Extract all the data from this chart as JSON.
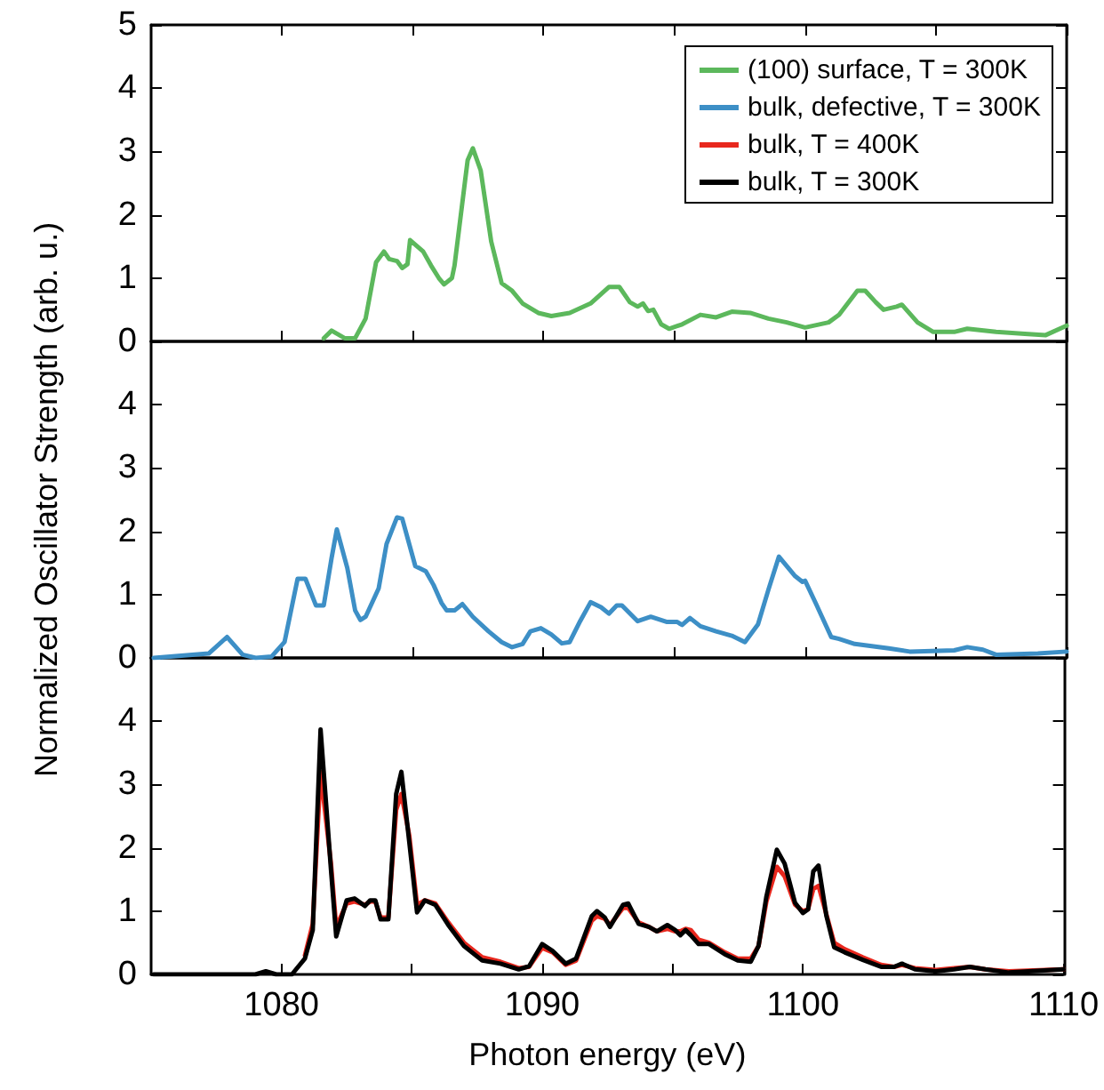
{
  "chart_data": [
    {
      "type": "line",
      "xlim": [
        1075,
        1110
      ],
      "xticks": [
        1080,
        {
          "value": 1085,
          "label": null
        },
        1090,
        {
          "value": 1095,
          "label": null
        },
        1100,
        {
          "value": 1105,
          "label": null
        },
        1110
      ],
      "ylim": [
        0,
        5
      ],
      "yticks": [
        0,
        1,
        2,
        3,
        4,
        5
      ],
      "tick_labels": "y",
      "legend": "top right",
      "grid": false,
      "series": [
        {
          "name": "(100) surface, T = 300K",
          "color": "#5cb85c",
          "x": [
            1081.6,
            1081.9,
            1082.4,
            1082.8,
            1083.2,
            1083.6,
            1083.9,
            1084.1,
            1084.4,
            1084.6,
            1084.8,
            1084.9,
            1085.4,
            1085.7,
            1086.0,
            1086.2,
            1086.5,
            1086.6,
            1087.0,
            1087.1,
            1087.3,
            1087.6,
            1088.0,
            1088.4,
            1088.8,
            1089.2,
            1089.8,
            1090.3,
            1091.0,
            1091.8,
            1092.5,
            1092.9,
            1093.3,
            1093.6,
            1093.8,
            1094.0,
            1094.2,
            1094.5,
            1094.8,
            1095.3,
            1096.0,
            1096.6,
            1097.2,
            1097.9,
            1098.6,
            1099.3,
            1100.0,
            1100.9,
            1101.3,
            1102.0,
            1102.3,
            1102.7,
            1103.0,
            1103.5,
            1103.7,
            1104.3,
            1104.9,
            1105.7,
            1106.2,
            1107.3,
            1108.4,
            1109.2,
            1110.0
          ],
          "values": [
            0.05,
            0.17,
            0.05,
            0.05,
            0.36,
            1.25,
            1.42,
            1.3,
            1.27,
            1.16,
            1.22,
            1.6,
            1.42,
            1.2,
            1.0,
            0.9,
            1.0,
            1.2,
            2.53,
            2.86,
            3.05,
            2.7,
            1.58,
            0.92,
            0.8,
            0.6,
            0.45,
            0.4,
            0.45,
            0.6,
            0.86,
            0.86,
            0.62,
            0.55,
            0.6,
            0.48,
            0.5,
            0.27,
            0.2,
            0.27,
            0.42,
            0.38,
            0.47,
            0.45,
            0.36,
            0.3,
            0.22,
            0.3,
            0.42,
            0.8,
            0.8,
            0.62,
            0.5,
            0.55,
            0.58,
            0.3,
            0.15,
            0.15,
            0.2,
            0.15,
            0.12,
            0.1,
            0.25
          ]
        }
      ]
    },
    {
      "type": "line",
      "xlim": [
        1075,
        1110
      ],
      "xticks": [
        1080,
        {
          "value": 1085,
          "label": null
        },
        1090,
        {
          "value": 1095,
          "label": null
        },
        1100,
        {
          "value": 1105,
          "label": null
        },
        1110
      ],
      "ylim": [
        0,
        5
      ],
      "yticks": [
        0,
        1,
        2,
        3,
        4
      ],
      "tick_labels": "y",
      "grid": false,
      "legend": "top right",
      "ylabel": "Normalized Oscillator Strength (arb. u.)",
      "series": [
        {
          "name": "bulk, defective, T = 300K",
          "color": "#3d8fc6",
          "x": [
            1075.1,
            1077.2,
            1077.9,
            1078.5,
            1079.0,
            1079.6,
            1080.1,
            1080.6,
            1080.9,
            1081.3,
            1081.6,
            1081.9,
            1082.1,
            1082.5,
            1082.8,
            1083.0,
            1083.2,
            1083.7,
            1084.0,
            1084.4,
            1084.6,
            1085.1,
            1085.5,
            1085.8,
            1086.1,
            1086.3,
            1086.6,
            1086.9,
            1087.3,
            1087.9,
            1088.4,
            1088.8,
            1089.2,
            1089.5,
            1089.9,
            1090.3,
            1090.7,
            1091.0,
            1091.4,
            1091.8,
            1092.2,
            1092.5,
            1092.8,
            1093.0,
            1093.6,
            1094.1,
            1094.7,
            1095.1,
            1095.3,
            1095.6,
            1096.0,
            1096.6,
            1097.2,
            1097.7,
            1098.2,
            1098.6,
            1099.0,
            1099.6,
            1099.9,
            1100.0,
            1100.4,
            1101.0,
            1101.3,
            1101.9,
            1103.2,
            1104.0,
            1105.7,
            1106.2,
            1106.8,
            1107.3,
            1108.9,
            1110.0
          ],
          "values": [
            0,
            0.07,
            0.33,
            0.05,
            0,
            0.02,
            0.25,
            1.25,
            1.25,
            0.83,
            0.83,
            1.58,
            2.03,
            1.42,
            0.75,
            0.6,
            0.65,
            1.1,
            1.8,
            2.22,
            2.2,
            1.45,
            1.37,
            1.15,
            0.87,
            0.75,
            0.75,
            0.85,
            0.65,
            0.42,
            0.25,
            0.17,
            0.22,
            0.42,
            0.47,
            0.37,
            0.23,
            0.25,
            0.58,
            0.88,
            0.8,
            0.7,
            0.83,
            0.83,
            0.58,
            0.65,
            0.57,
            0.57,
            0.52,
            0.63,
            0.5,
            0.42,
            0.35,
            0.25,
            0.53,
            1.08,
            1.6,
            1.3,
            1.2,
            1.22,
            0.87,
            0.33,
            0.3,
            0.22,
            0.15,
            0.1,
            0.12,
            0.17,
            0.13,
            0.05,
            0.07,
            0.1
          ]
        }
      ]
    },
    {
      "type": "line",
      "xlim": [
        1075,
        1110
      ],
      "xticks": [
        1080,
        {
          "value": 1085,
          "label": null
        },
        1090,
        {
          "value": 1095,
          "label": null
        },
        1100,
        {
          "value": 1105,
          "label": null
        },
        1110
      ],
      "ylim": [
        0,
        5
      ],
      "yticks": [
        0,
        1,
        2,
        3,
        4
      ],
      "grid": false,
      "legend": "top right",
      "xlabel": "Photon energy (eV)",
      "series": [
        {
          "name": "bulk, T = 400K",
          "color": "#e8281e",
          "x": [
            1080.9,
            1081.2,
            1081.5,
            1081.9,
            1082.1,
            1082.5,
            1082.8,
            1083.2,
            1083.4,
            1083.6,
            1083.8,
            1084.1,
            1084.4,
            1084.6,
            1084.9,
            1085.2,
            1085.5,
            1085.9,
            1086.4,
            1087.0,
            1087.7,
            1088.4,
            1089.1,
            1089.5,
            1090.0,
            1090.4,
            1090.9,
            1091.3,
            1091.9,
            1092.1,
            1092.4,
            1092.6,
            1093.1,
            1093.3,
            1093.7,
            1094.1,
            1094.4,
            1094.8,
            1095.1,
            1095.3,
            1095.5,
            1095.7,
            1096.0,
            1096.4,
            1097.0,
            1097.5,
            1098.0,
            1098.3,
            1098.6,
            1099.0,
            1099.3,
            1099.7,
            1100.0,
            1100.2,
            1100.4,
            1100.6,
            1100.9,
            1101.2,
            1101.6,
            1102.3,
            1103.0,
            1103.5,
            1103.8,
            1104.3,
            1105.1,
            1105.8,
            1106.4,
            1107.0,
            1107.9,
            1110.0
          ],
          "values": [
            0.3,
            0.8,
            3.2,
            1.75,
            0.75,
            1.12,
            1.15,
            1.1,
            1.15,
            1.15,
            0.9,
            0.9,
            2.6,
            2.85,
            2.2,
            1.1,
            1.17,
            1.12,
            0.82,
            0.5,
            0.27,
            0.2,
            0.1,
            0.12,
            0.42,
            0.35,
            0.15,
            0.22,
            0.85,
            0.92,
            0.88,
            0.78,
            1.05,
            1.05,
            0.82,
            0.75,
            0.68,
            0.72,
            0.68,
            0.68,
            0.72,
            0.7,
            0.55,
            0.5,
            0.35,
            0.25,
            0.25,
            0.45,
            1.15,
            1.7,
            1.55,
            1.1,
            1.0,
            1.03,
            1.35,
            1.4,
            0.95,
            0.5,
            0.4,
            0.27,
            0.15,
            0.12,
            0.15,
            0.1,
            0.07,
            0.1,
            0.12,
            0.08,
            0.05,
            0.08
          ]
        },
        {
          "name": "bulk, T = 300K",
          "color": "#000000",
          "x": [
            1075.1,
            1079.0,
            1079.4,
            1079.8,
            1080.4,
            1080.9,
            1081.2,
            1081.5,
            1081.9,
            1082.1,
            1082.5,
            1082.8,
            1083.2,
            1083.4,
            1083.6,
            1083.8,
            1084.1,
            1084.4,
            1084.6,
            1084.9,
            1085.2,
            1085.5,
            1085.9,
            1086.4,
            1087.0,
            1087.7,
            1088.4,
            1089.1,
            1089.5,
            1090.0,
            1090.4,
            1090.9,
            1091.3,
            1091.9,
            1092.1,
            1092.4,
            1092.6,
            1093.1,
            1093.3,
            1093.7,
            1094.1,
            1094.4,
            1094.8,
            1095.1,
            1095.3,
            1095.5,
            1095.7,
            1096.0,
            1096.4,
            1097.0,
            1097.5,
            1098.0,
            1098.3,
            1098.6,
            1099.0,
            1099.3,
            1099.7,
            1100.0,
            1100.2,
            1100.4,
            1100.6,
            1100.9,
            1101.2,
            1101.6,
            1102.3,
            1103.0,
            1103.5,
            1103.8,
            1104.3,
            1105.1,
            1105.8,
            1106.4,
            1107.0,
            1107.9,
            1110.0
          ],
          "values": [
            0,
            0,
            0.05,
            0,
            0,
            0.25,
            0.7,
            3.87,
            1.65,
            0.6,
            1.17,
            1.2,
            1.08,
            1.17,
            1.17,
            0.87,
            0.87,
            2.85,
            3.2,
            2.1,
            0.98,
            1.17,
            1.1,
            0.78,
            0.45,
            0.22,
            0.17,
            0.08,
            0.13,
            0.48,
            0.37,
            0.17,
            0.25,
            0.92,
            1.0,
            0.9,
            0.75,
            1.1,
            1.12,
            0.8,
            0.75,
            0.68,
            0.78,
            0.7,
            0.62,
            0.7,
            0.62,
            0.48,
            0.48,
            0.32,
            0.22,
            0.2,
            0.45,
            1.23,
            1.97,
            1.75,
            1.13,
            0.97,
            1.03,
            1.63,
            1.72,
            0.93,
            0.43,
            0.35,
            0.23,
            0.12,
            0.12,
            0.17,
            0.08,
            0.05,
            0.08,
            0.12,
            0.08,
            0.03,
            0.08
          ]
        }
      ]
    }
  ]
}
